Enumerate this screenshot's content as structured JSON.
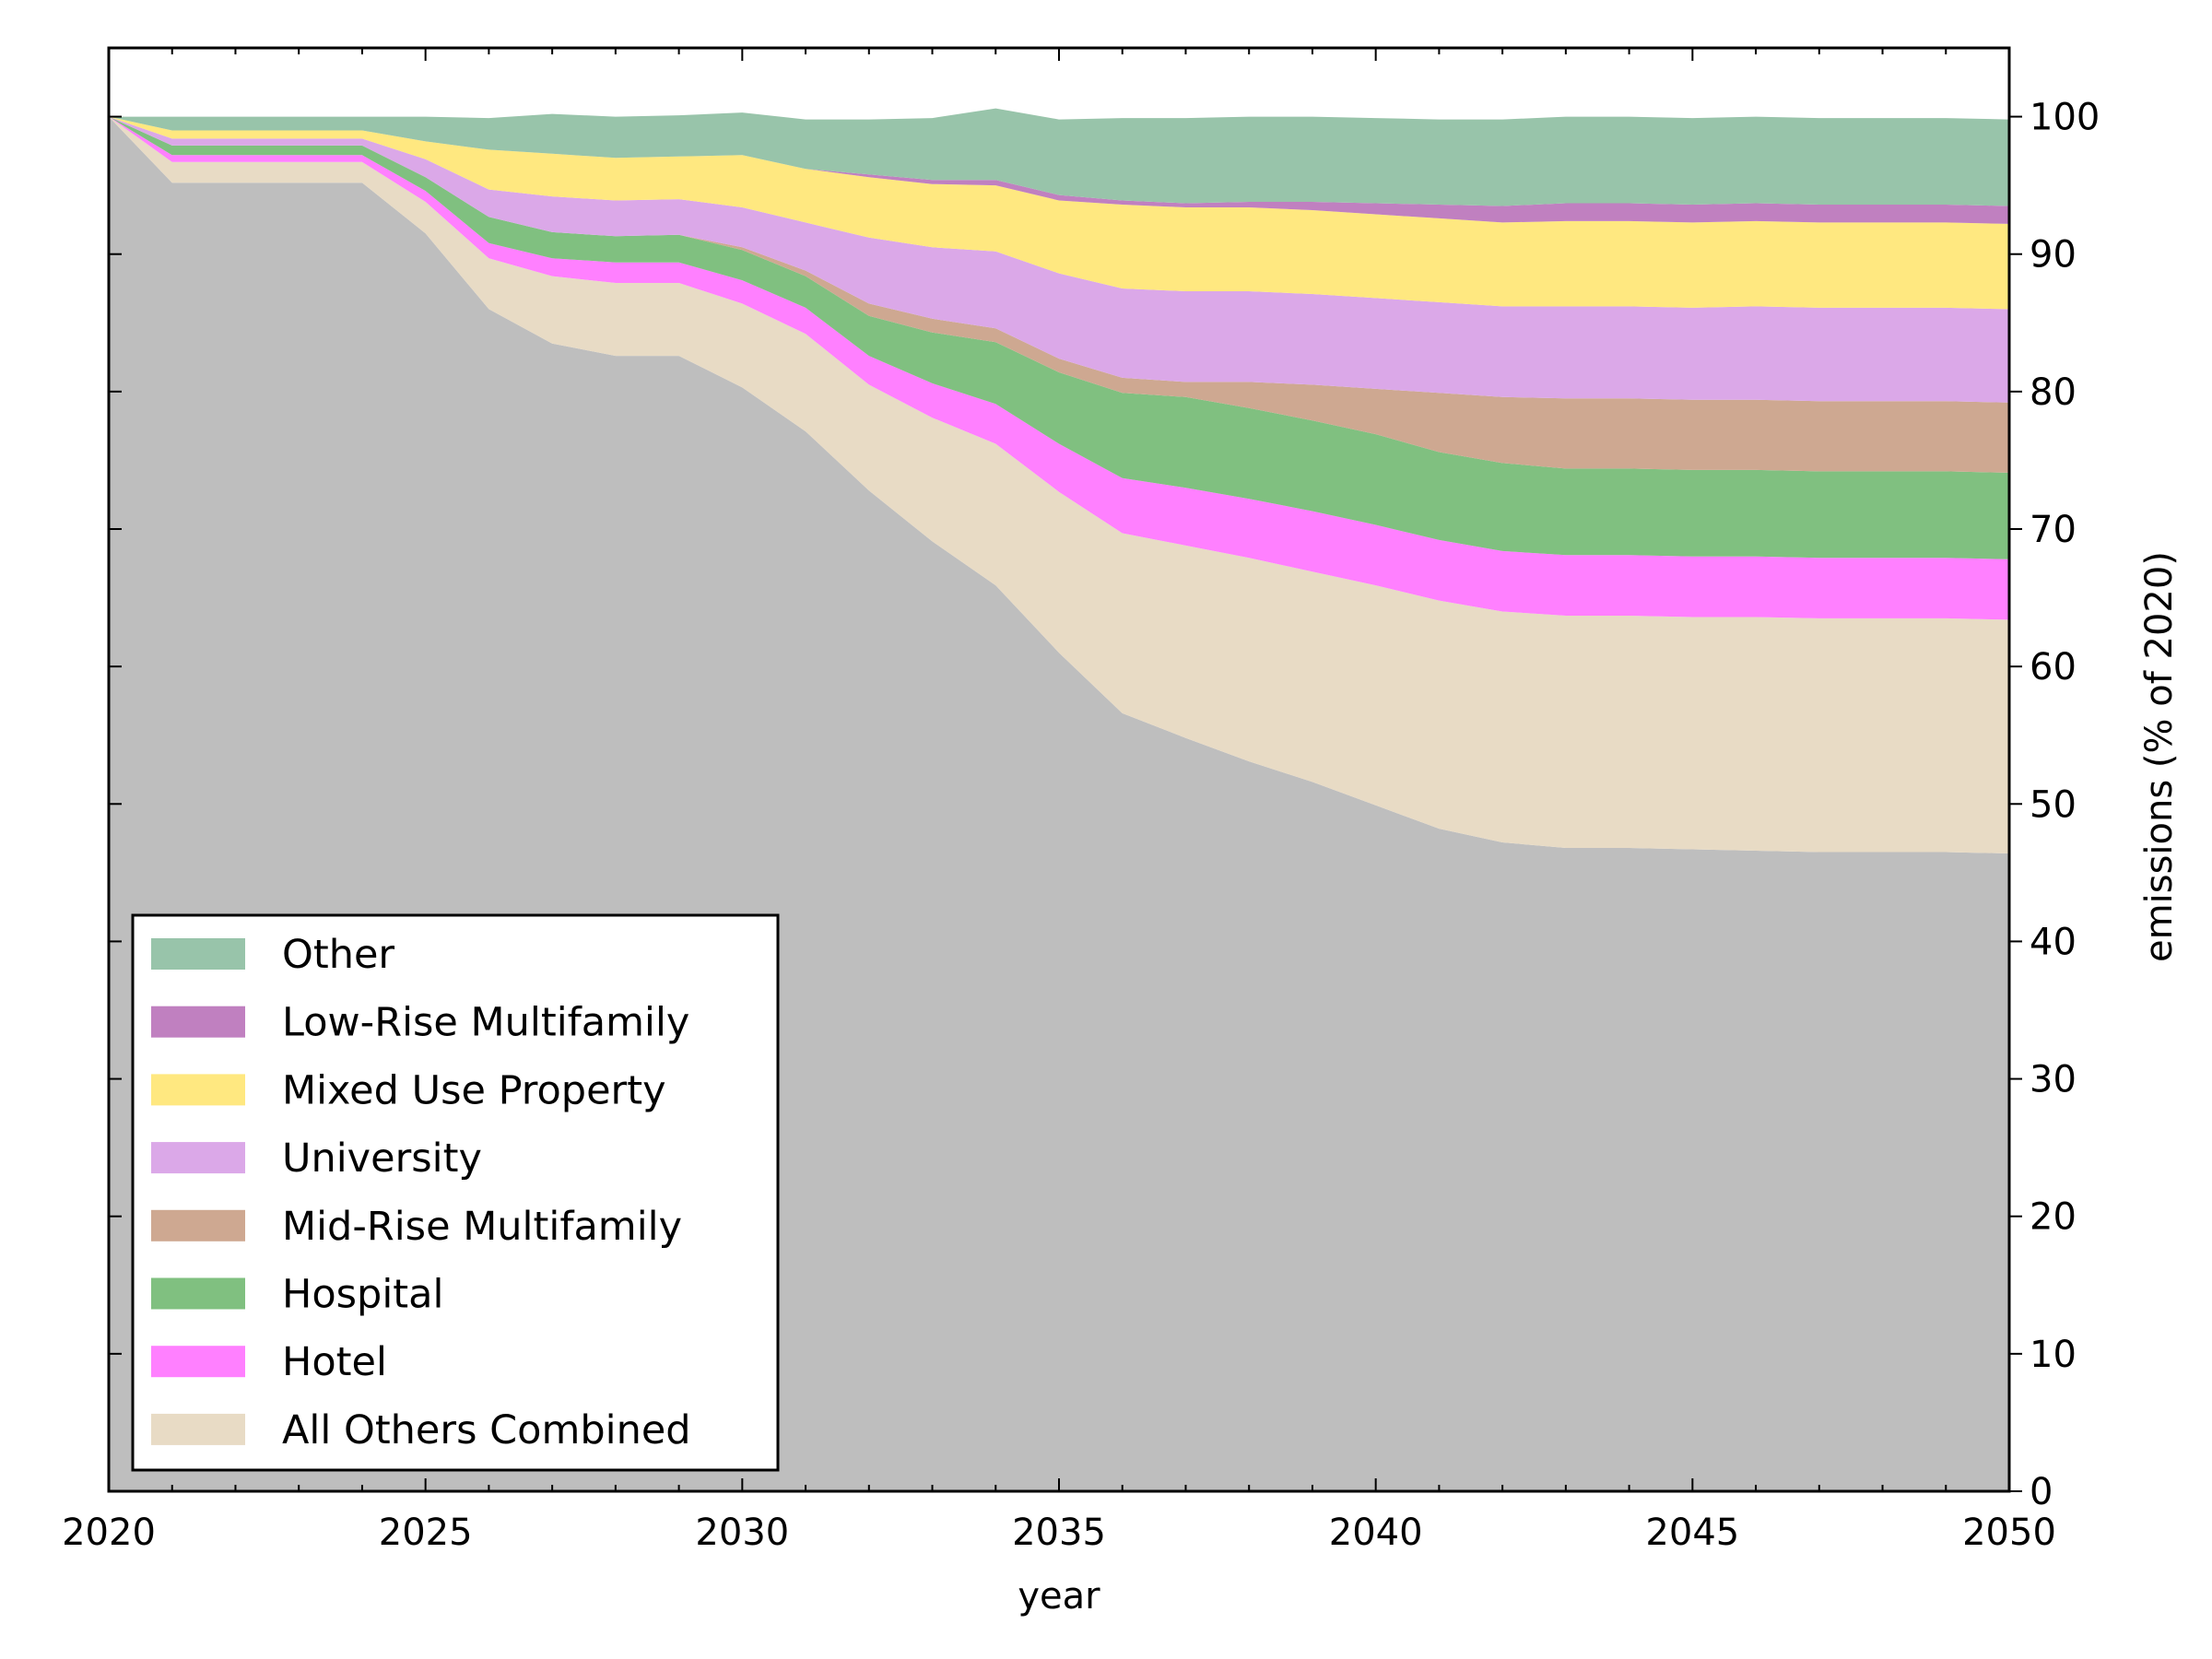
{
  "chart_data": {
    "type": "area",
    "stacked": true,
    "xlabel": "year",
    "ylabel": "emissions (% of 2020)",
    "yaxis_side": "right",
    "xlim": [
      2020,
      2050
    ],
    "ylim": [
      0,
      105
    ],
    "x_ticks": [
      2020,
      2025,
      2030,
      2035,
      2040,
      2045,
      2050
    ],
    "y_ticks": [
      0,
      10,
      20,
      30,
      40,
      50,
      60,
      70,
      80,
      90,
      100
    ],
    "grid": false,
    "legend_position": "lower-left",
    "x": [
      2020,
      2021,
      2024,
      2025,
      2026,
      2027,
      2028,
      2029,
      2030,
      2031,
      2032,
      2033,
      2034,
      2035,
      2036,
      2037,
      2038,
      2039,
      2040,
      2041,
      2042,
      2043,
      2044,
      2045,
      2046,
      2047,
      2048,
      2049,
      2050
    ],
    "base_series": {
      "color": "#bebebe",
      "values": [
        100,
        95.2,
        95.2,
        91.5,
        86.0,
        83.5,
        82.6,
        82.6,
        80.3,
        77.1,
        72.8,
        69.1,
        65.9,
        61.0,
        56.6,
        54.8,
        53.1,
        51.6,
        49.9,
        48.2,
        47.2,
        46.8,
        46.8,
        46.7,
        46.6,
        46.5,
        46.5,
        46.5,
        46.4
      ]
    },
    "series": [
      {
        "name": "All Others Combined",
        "color": "#e8dbc5",
        "values": [
          0,
          1.5,
          1.5,
          2.3,
          3.7,
          4.9,
          5.3,
          5.3,
          6.1,
          7.1,
          7.7,
          9.0,
          10.3,
          11.7,
          13.1,
          14.0,
          14.8,
          15.3,
          16.0,
          16.6,
          16.8,
          16.9,
          16.9,
          16.9,
          17.0,
          17.0,
          17.0,
          17.0,
          17.0
        ]
      },
      {
        "name": "Hotel",
        "color": "#ff80ff",
        "values": [
          0,
          0.5,
          0.5,
          0.8,
          1.1,
          1.3,
          1.5,
          1.5,
          1.7,
          1.9,
          2.1,
          2.5,
          2.9,
          3.5,
          4.0,
          4.2,
          4.3,
          4.4,
          4.4,
          4.4,
          4.4,
          4.4,
          4.4,
          4.4,
          4.4,
          4.4,
          4.4,
          4.4,
          4.4
        ]
      },
      {
        "name": "Hospital",
        "color": "#80c080",
        "values": [
          0,
          0.7,
          0.7,
          1.0,
          1.9,
          1.9,
          1.9,
          2.0,
          2.2,
          2.3,
          2.9,
          3.7,
          4.5,
          5.2,
          6.2,
          6.6,
          6.6,
          6.6,
          6.6,
          6.4,
          6.4,
          6.3,
          6.3,
          6.3,
          6.3,
          6.3,
          6.3,
          6.3,
          6.3
        ]
      },
      {
        "name": "Mid-Rise Multifamily",
        "color": "#cea891",
        "values": [
          0,
          0,
          0,
          0,
          0,
          0,
          0,
          0,
          0.2,
          0.4,
          0.9,
          1.0,
          1.0,
          1.0,
          1.1,
          1.1,
          1.9,
          2.6,
          3.3,
          4.3,
          4.8,
          5.1,
          5.1,
          5.1,
          5.1,
          5.1,
          5.1,
          5.1,
          5.1
        ]
      },
      {
        "name": "University",
        "color": "#dba8e8",
        "values": [
          0,
          0.5,
          0.5,
          1.3,
          2.0,
          2.6,
          2.6,
          2.6,
          2.9,
          3.5,
          4.8,
          5.2,
          5.6,
          6.2,
          6.5,
          6.6,
          6.6,
          6.6,
          6.6,
          6.6,
          6.6,
          6.7,
          6.7,
          6.7,
          6.8,
          6.8,
          6.8,
          6.8,
          6.8
        ]
      },
      {
        "name": "Mixed Use Property",
        "color": "#ffe880",
        "values": [
          0,
          0.6,
          0.6,
          1.3,
          2.9,
          3.1,
          3.1,
          3.1,
          3.8,
          3.9,
          4.4,
          4.6,
          4.8,
          5.3,
          6.1,
          6.1,
          6.1,
          6.1,
          6.1,
          6.1,
          6.1,
          6.2,
          6.2,
          6.2,
          6.2,
          6.2,
          6.2,
          6.2,
          6.2
        ]
      },
      {
        "name": "Low-Rise Multifamily",
        "color": "#c080c0",
        "values": [
          0,
          0,
          0,
          0,
          0,
          0,
          0,
          0,
          0,
          0,
          0.2,
          0.3,
          0.4,
          0.4,
          0.3,
          0.3,
          0.4,
          0.6,
          0.8,
          1.0,
          1.2,
          1.3,
          1.3,
          1.3,
          1.3,
          1.3,
          1.3,
          1.3,
          1.3
        ]
      },
      {
        "name": "Other",
        "color": "#98c4aa",
        "values": [
          0,
          1.0,
          1.0,
          1.8,
          2.3,
          2.9,
          3.0,
          3.0,
          3.1,
          3.6,
          4.0,
          4.5,
          5.2,
          5.5,
          6.0,
          6.2,
          6.2,
          6.2,
          6.2,
          6.2,
          6.3,
          6.3,
          6.3,
          6.3,
          6.3,
          6.3,
          6.3,
          6.3,
          6.3
        ]
      }
    ],
    "legend_order": [
      "Other",
      "Low-Rise Multifamily",
      "Mixed Use Property",
      "University",
      "Mid-Rise Multifamily",
      "Hospital",
      "Hotel",
      "All Others Combined"
    ]
  }
}
